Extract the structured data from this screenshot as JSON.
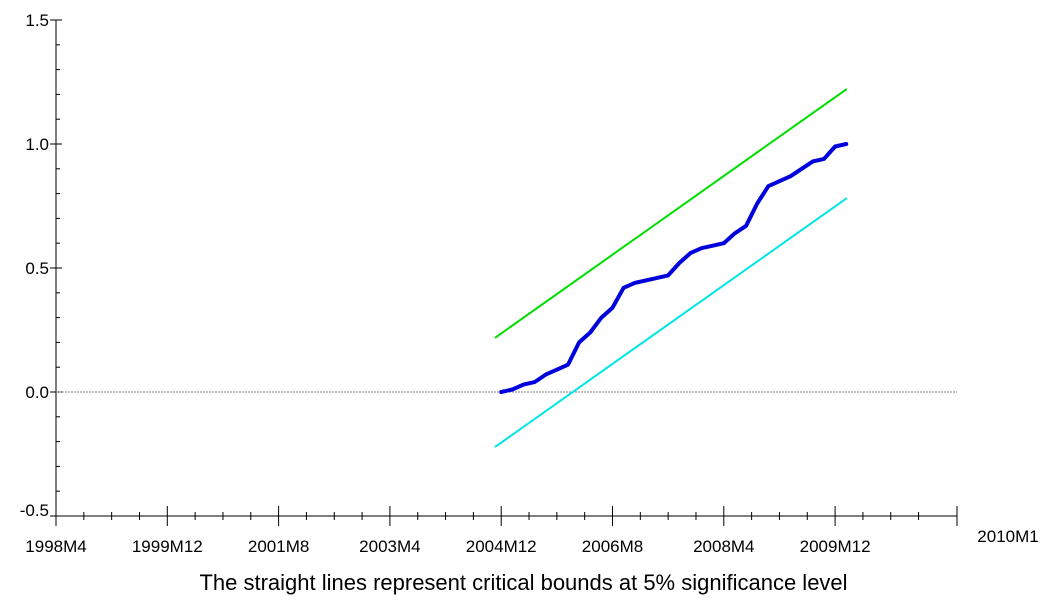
{
  "chart_data": {
    "type": "line",
    "title": "",
    "xlabel": "",
    "ylabel": "",
    "caption": "The straight lines represent critical bounds at 5% significance level",
    "x_ticks": [
      "1998M4",
      "1999M12",
      "2001M8",
      "2003M4",
      "2004M12",
      "2006M8",
      "2008M4",
      "2009M12",
      "2010M1"
    ],
    "y_ticks": [
      "-0.5",
      "0.0",
      "0.5",
      "1.0",
      "1.5"
    ],
    "ylim": [
      -0.5,
      1.5
    ],
    "reference_line": {
      "y": 0.0,
      "color": "#808080",
      "style": "dotted"
    },
    "series": [
      {
        "color": "#0000dd",
        "x": [
          "2004M12",
          "2005M2",
          "2005M4",
          "2005M6",
          "2005M8",
          "2005M10",
          "2005M12",
          "2006M2",
          "2006M4",
          "2006M6",
          "2006M8",
          "2006M10",
          "2006M12",
          "2007M2",
          "2007M4",
          "2007M6",
          "2007M8",
          "2007M10",
          "2007M12",
          "2008M2",
          "2008M4",
          "2008M6",
          "2008M8",
          "2008M10",
          "2008M12",
          "2009M2",
          "2009M4",
          "2009M6",
          "2009M8",
          "2009M10",
          "2009M12",
          "2010M2"
        ],
        "values": [
          0.0,
          0.01,
          0.03,
          0.04,
          0.07,
          0.09,
          0.11,
          0.2,
          0.24,
          0.3,
          0.34,
          0.42,
          0.44,
          0.45,
          0.46,
          0.47,
          0.52,
          0.56,
          0.58,
          0.59,
          0.6,
          0.64,
          0.67,
          0.76,
          0.83,
          0.85,
          0.87,
          0.9,
          0.93,
          0.94,
          0.99,
          1.0
        ]
      },
      {
        "color": "#00dd00",
        "x": [
          "2004M11",
          "2010M2"
        ],
        "values": [
          0.22,
          1.22
        ]
      },
      {
        "color": "#00e5e5",
        "x": [
          "2004M11",
          "2010M2"
        ],
        "values": [
          -0.22,
          0.78
        ]
      }
    ]
  }
}
